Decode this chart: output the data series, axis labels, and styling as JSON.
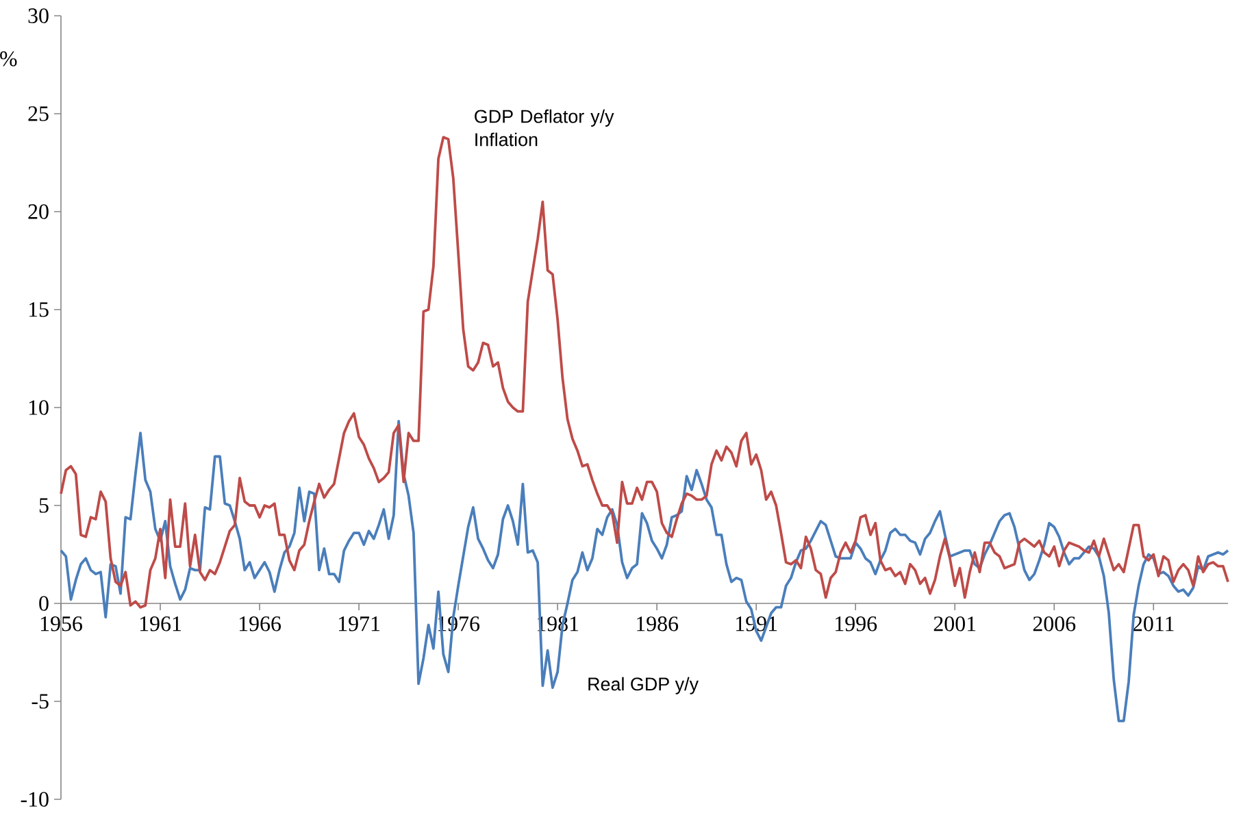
{
  "chart_data": {
    "type": "line",
    "ylabel": "%",
    "x": [
      1956,
      1956.25,
      1956.5,
      1956.75,
      1957,
      1957.25,
      1957.5,
      1957.75,
      1958,
      1958.25,
      1958.5,
      1958.75,
      1959,
      1959.25,
      1959.5,
      1959.75,
      1960,
      1960.25,
      1960.5,
      1960.75,
      1961,
      1961.25,
      1961.5,
      1961.75,
      1962,
      1962.25,
      1962.5,
      1962.75,
      1963,
      1963.25,
      1963.5,
      1963.75,
      1964,
      1964.25,
      1964.5,
      1964.75,
      1965,
      1965.25,
      1965.5,
      1965.75,
      1966,
      1966.25,
      1966.5,
      1966.75,
      1967,
      1967.25,
      1967.5,
      1967.75,
      1968,
      1968.25,
      1968.5,
      1968.75,
      1969,
      1969.25,
      1969.5,
      1969.75,
      1970,
      1970.25,
      1970.5,
      1970.75,
      1971,
      1971.25,
      1971.5,
      1971.75,
      1972,
      1972.25,
      1972.5,
      1972.75,
      1973,
      1973.25,
      1973.5,
      1973.75,
      1974,
      1974.25,
      1974.5,
      1974.75,
      1975,
      1975.25,
      1975.5,
      1975.75,
      1976,
      1976.25,
      1976.5,
      1976.75,
      1977,
      1977.25,
      1977.5,
      1977.75,
      1978,
      1978.25,
      1978.5,
      1978.75,
      1979,
      1979.25,
      1979.5,
      1979.75,
      1980,
      1980.25,
      1980.5,
      1980.75,
      1981,
      1981.25,
      1981.5,
      1981.75,
      1982,
      1982.25,
      1982.5,
      1982.75,
      1983,
      1983.25,
      1983.5,
      1983.75,
      1984,
      1984.25,
      1984.5,
      1984.75,
      1985,
      1985.25,
      1985.5,
      1985.75,
      1986,
      1986.25,
      1986.5,
      1986.75,
      1987,
      1987.25,
      1987.5,
      1987.75,
      1988,
      1988.25,
      1988.5,
      1988.75,
      1989,
      1989.25,
      1989.5,
      1989.75,
      1990,
      1990.25,
      1990.5,
      1990.75,
      1991,
      1991.25,
      1991.5,
      1991.75,
      1992,
      1992.25,
      1992.5,
      1992.75,
      1993,
      1993.25,
      1993.5,
      1993.75,
      1994,
      1994.25,
      1994.5,
      1994.75,
      1995,
      1995.25,
      1995.5,
      1995.75,
      1996,
      1996.25,
      1996.5,
      1996.75,
      1997,
      1997.25,
      1997.5,
      1997.75,
      1998,
      1998.25,
      1998.5,
      1998.75,
      1999,
      1999.25,
      1999.5,
      1999.75,
      2000,
      2000.25,
      2000.5,
      2000.75,
      2001,
      2001.25,
      2001.5,
      2001.75,
      2002,
      2002.25,
      2002.5,
      2002.75,
      2003,
      2003.25,
      2003.5,
      2003.75,
      2004,
      2004.25,
      2004.5,
      2004.75,
      2005,
      2005.25,
      2005.5,
      2005.75,
      2006,
      2006.25,
      2006.5,
      2006.75,
      2007,
      2007.25,
      2007.5,
      2007.75,
      2008,
      2008.25,
      2008.5,
      2008.75,
      2009,
      2009.25,
      2009.5,
      2009.75,
      2010,
      2010.25,
      2010.5,
      2010.75,
      2011,
      2011.25,
      2011.5,
      2011.75,
      2012,
      2012.25,
      2012.5,
      2012.75,
      2013,
      2013.25,
      2013.5,
      2013.75,
      2014,
      2014.25,
      2014.5,
      2014.75
    ],
    "series": [
      {
        "name": "Real GDP y/y",
        "color": "#4a7ebb",
        "values": [
          2.7,
          2.4,
          0.2,
          1.2,
          2.0,
          2.3,
          1.7,
          1.5,
          1.6,
          -0.7,
          2.0,
          1.9,
          0.5,
          4.4,
          4.3,
          6.6,
          8.7,
          6.3,
          5.7,
          3.8,
          3.2,
          4.2,
          1.9,
          1.0,
          0.2,
          0.7,
          1.8,
          1.7,
          1.7,
          4.9,
          4.8,
          7.5,
          7.5,
          5.1,
          5.0,
          4.2,
          3.3,
          1.7,
          2.1,
          1.3,
          1.7,
          2.1,
          1.6,
          0.6,
          1.7,
          2.6,
          2.9,
          3.6,
          5.9,
          4.2,
          5.7,
          5.6,
          1.7,
          2.8,
          1.5,
          1.5,
          1.1,
          2.7,
          3.2,
          3.6,
          3.6,
          3.0,
          3.7,
          3.3,
          4.0,
          4.8,
          3.3,
          4.5,
          9.3,
          6.6,
          5.5,
          3.6,
          -4.1,
          -2.8,
          -1.1,
          -2.3,
          0.6,
          -2.6,
          -3.5,
          -0.7,
          0.9,
          2.4,
          3.9,
          4.9,
          3.3,
          2.8,
          2.2,
          1.8,
          2.5,
          4.3,
          5.0,
          4.2,
          3.0,
          6.1,
          2.6,
          2.7,
          2.1,
          -4.2,
          -2.4,
          -4.3,
          -3.5,
          -1.1,
          0.0,
          1.2,
          1.6,
          2.6,
          1.7,
          2.3,
          3.8,
          3.5,
          4.4,
          4.8,
          4.0,
          2.1,
          1.3,
          1.8,
          2.0,
          4.6,
          4.1,
          3.2,
          2.8,
          2.3,
          3.0,
          4.4,
          4.5,
          4.7,
          6.5,
          5.8,
          6.8,
          6.1,
          5.3,
          4.9,
          3.5,
          3.5,
          2.0,
          1.1,
          1.3,
          1.2,
          0.1,
          -0.3,
          -1.4,
          -1.9,
          -1.2,
          -0.5,
          -0.2,
          -0.2,
          0.9,
          1.3,
          2.1,
          2.7,
          2.8,
          3.2,
          3.7,
          4.2,
          4.0,
          3.2,
          2.4,
          2.3,
          2.3,
          2.3,
          3.1,
          2.8,
          2.3,
          2.1,
          1.5,
          2.2,
          2.7,
          3.6,
          3.8,
          3.5,
          3.5,
          3.2,
          3.1,
          2.5,
          3.3,
          3.6,
          4.2,
          4.7,
          3.5,
          2.4,
          2.5,
          2.6,
          2.7,
          2.7,
          2.0,
          1.8,
          2.5,
          3.0,
          3.6,
          4.2,
          4.5,
          4.6,
          3.9,
          2.8,
          1.7,
          1.2,
          1.5,
          2.2,
          3.0,
          4.1,
          3.9,
          3.4,
          2.6,
          2.0,
          2.3,
          2.3,
          2.6,
          2.9,
          2.8,
          2.4,
          1.4,
          -0.5,
          -3.9,
          -6.0,
          -6.0,
          -4.0,
          -0.6,
          0.9,
          2.0,
          2.5,
          2.3,
          1.5,
          1.6,
          1.4,
          0.9,
          0.6,
          0.7,
          0.4,
          0.8,
          1.9,
          1.7,
          2.4,
          2.5,
          2.6,
          2.5,
          2.7
        ]
      },
      {
        "name": "GDP Deflator y/y Inflation",
        "color": "#be4b48",
        "values": [
          5.6,
          6.8,
          7.0,
          6.6,
          3.5,
          3.4,
          4.4,
          4.3,
          5.7,
          5.2,
          2.3,
          1.1,
          0.9,
          1.6,
          -0.1,
          0.1,
          -0.2,
          -0.1,
          1.7,
          2.3,
          3.8,
          1.3,
          5.3,
          2.9,
          2.9,
          5.1,
          1.9,
          3.5,
          1.6,
          1.2,
          1.7,
          1.5,
          2.1,
          2.9,
          3.7,
          4.0,
          6.4,
          5.2,
          5.0,
          5.0,
          4.4,
          5.0,
          4.9,
          5.1,
          3.5,
          3.5,
          2.2,
          1.7,
          2.7,
          3.0,
          4.2,
          5.2,
          6.1,
          5.4,
          5.8,
          6.1,
          7.4,
          8.7,
          9.3,
          9.7,
          8.5,
          8.1,
          7.4,
          6.9,
          6.2,
          6.4,
          6.7,
          8.7,
          9.1,
          6.2,
          8.7,
          8.3,
          8.3,
          14.9,
          15.0,
          17.2,
          22.7,
          23.8,
          23.7,
          21.7,
          17.9,
          14.0,
          12.1,
          11.9,
          12.3,
          13.3,
          13.2,
          12.1,
          12.3,
          11.0,
          10.3,
          10.0,
          9.8,
          9.8,
          15.4,
          17.0,
          18.6,
          20.5,
          17.0,
          16.8,
          14.5,
          11.5,
          9.4,
          8.4,
          7.8,
          7.0,
          7.1,
          6.3,
          5.6,
          5.0,
          5.0,
          4.6,
          3.1,
          6.2,
          5.1,
          5.1,
          5.9,
          5.3,
          6.2,
          6.2,
          5.7,
          4.1,
          3.6,
          3.4,
          4.3,
          5.1,
          5.6,
          5.5,
          5.3,
          5.3,
          5.5,
          7.1,
          7.8,
          7.3,
          8.0,
          7.7,
          7.0,
          8.3,
          8.7,
          7.1,
          7.6,
          6.8,
          5.3,
          5.7,
          5.0,
          3.6,
          2.1,
          2.0,
          2.2,
          1.8,
          3.4,
          2.8,
          1.7,
          1.5,
          0.3,
          1.3,
          1.6,
          2.6,
          3.1,
          2.6,
          3.2,
          4.4,
          4.5,
          3.5,
          4.1,
          2.2,
          1.7,
          1.8,
          1.4,
          1.6,
          1.0,
          2.0,
          1.7,
          1.0,
          1.3,
          0.5,
          1.2,
          2.4,
          3.3,
          2.3,
          0.9,
          1.8,
          0.3,
          1.6,
          2.6,
          1.6,
          3.1,
          3.1,
          2.6,
          2.4,
          1.8,
          1.9,
          2.0,
          3.1,
          3.3,
          3.1,
          2.9,
          3.2,
          2.6,
          2.4,
          2.9,
          1.9,
          2.7,
          3.1,
          3.0,
          2.9,
          2.7,
          2.6,
          3.2,
          2.4,
          3.3,
          2.5,
          1.7,
          2.0,
          1.6,
          2.8,
          4.0,
          4.0,
          2.4,
          2.2,
          2.5,
          1.4,
          2.4,
          2.2,
          1.1,
          1.7,
          2.0,
          1.7,
          0.9,
          2.4,
          1.6,
          2.0,
          2.1,
          1.9,
          1.9,
          1.1
        ]
      }
    ],
    "xlim": [
      1956,
      2014.75
    ],
    "ylim": [
      -10,
      30
    ],
    "xticks": [
      1956,
      1961,
      1966,
      1971,
      1976,
      1981,
      1986,
      1991,
      1996,
      2001,
      2006,
      2011
    ],
    "yticks": [
      -10,
      -5,
      0,
      5,
      10,
      15,
      20,
      25,
      30
    ],
    "marker": "none",
    "line_style": "solid",
    "legend": false,
    "grid": false
  }
}
